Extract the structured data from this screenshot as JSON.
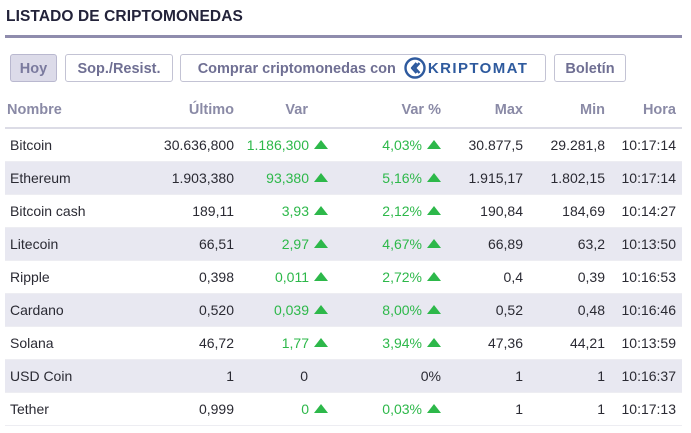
{
  "title": "LISTADO DE CRIPTOMONEDAS",
  "tabs": {
    "hoy": "Hoy",
    "sop": "Sop./Resist.",
    "comprar": "Comprar criptomonedas con",
    "kriptomat": "KRIPTOMAT",
    "boletin": "Boletín"
  },
  "table": {
    "headers": {
      "nombre": "Nombre",
      "ultimo": "Último",
      "var": "Var",
      "var_pct": "Var %",
      "max": "Max",
      "min": "Min",
      "hora": "Hora"
    },
    "rows": [
      {
        "nombre": "Bitcoin",
        "ultimo": "30.636,800",
        "var": "1.186,300",
        "var_pct": "4,03%",
        "max": "30.877,5",
        "min": "29.281,8",
        "hora": "10:17:14",
        "trend": "up"
      },
      {
        "nombre": "Ethereum",
        "ultimo": "1.903,380",
        "var": "93,380",
        "var_pct": "5,16%",
        "max": "1.915,17",
        "min": "1.802,15",
        "hora": "10:17:14",
        "trend": "up"
      },
      {
        "nombre": "Bitcoin cash",
        "ultimo": "189,11",
        "var": "3,93",
        "var_pct": "2,12%",
        "max": "190,84",
        "min": "184,69",
        "hora": "10:14:27",
        "trend": "up"
      },
      {
        "nombre": "Litecoin",
        "ultimo": "66,51",
        "var": "2,97",
        "var_pct": "4,67%",
        "max": "66,89",
        "min": "63,2",
        "hora": "10:13:50",
        "trend": "up"
      },
      {
        "nombre": "Ripple",
        "ultimo": "0,398",
        "var": "0,011",
        "var_pct": "2,72%",
        "max": "0,4",
        "min": "0,39",
        "hora": "10:16:53",
        "trend": "up"
      },
      {
        "nombre": "Cardano",
        "ultimo": "0,520",
        "var": "0,039",
        "var_pct": "8,00%",
        "max": "0,52",
        "min": "0,48",
        "hora": "10:16:46",
        "trend": "up"
      },
      {
        "nombre": "Solana",
        "ultimo": "46,72",
        "var": "1,77",
        "var_pct": "3,94%",
        "max": "47,36",
        "min": "44,21",
        "hora": "10:13:59",
        "trend": "up"
      },
      {
        "nombre": "USD Coin",
        "ultimo": "1",
        "var": "0",
        "var_pct": "0%",
        "max": "1",
        "min": "1",
        "hora": "10:16:37",
        "trend": "none"
      },
      {
        "nombre": "Tether",
        "ultimo": "0,999",
        "var": "0",
        "var_pct": "0,03%",
        "max": "1",
        "min": "1",
        "hora": "10:17:13",
        "trend": "up"
      }
    ]
  },
  "colors": {
    "positive": "#2db84a",
    "accent": "#8f8cad",
    "brand": "#2e5a9e"
  },
  "icons": {
    "trend_up": "triangle-up-icon",
    "kriptomat": "kriptomat-logo-icon"
  }
}
